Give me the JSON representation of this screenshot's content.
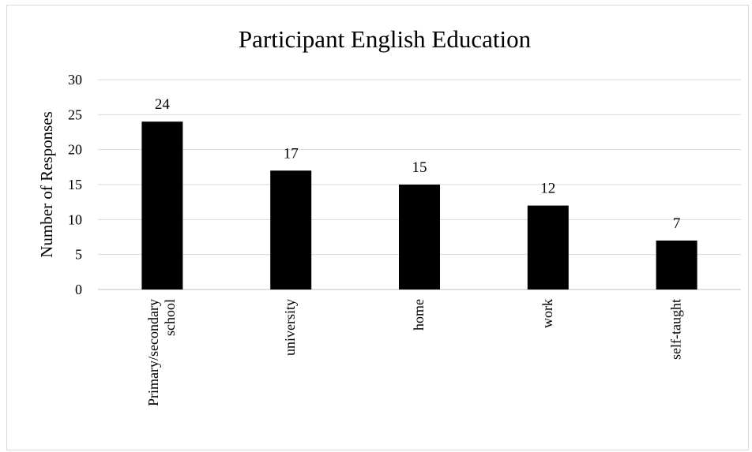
{
  "chart_data": {
    "type": "bar",
    "title": "Participant English Education",
    "xlabel": "",
    "ylabel": "Number of Responses",
    "categories": [
      "Primary/secondary school",
      "university",
      "home",
      "work",
      "self-taught"
    ],
    "category_lines": [
      [
        "Primary/secondary",
        "school"
      ],
      [
        "university"
      ],
      [
        "home"
      ],
      [
        "work"
      ],
      [
        "self-taught"
      ]
    ],
    "values": [
      24,
      17,
      15,
      12,
      7
    ],
    "ylim": [
      0,
      30
    ],
    "yticks": [
      0,
      5,
      10,
      15,
      20,
      25,
      30
    ],
    "grid": true,
    "legend": "none",
    "bar_color": "#000000",
    "grid_color": "#d9d9d9"
  }
}
